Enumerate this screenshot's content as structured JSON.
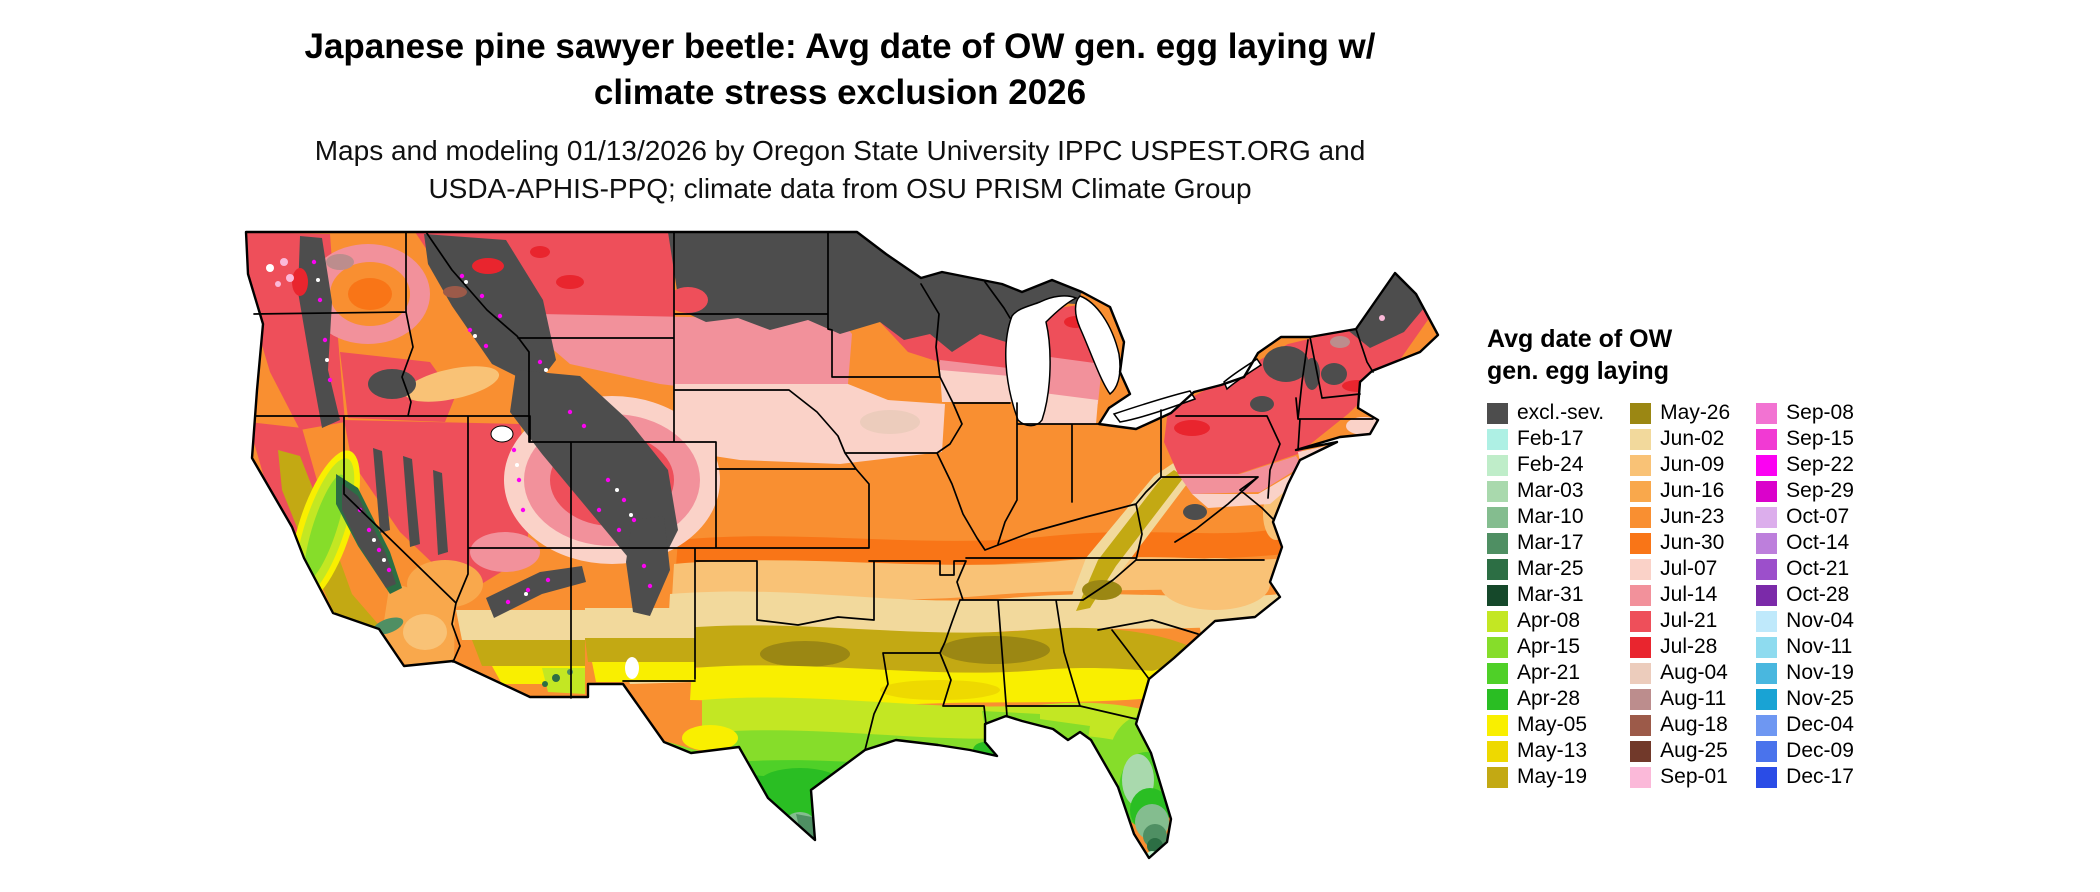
{
  "title": "Japanese pine sawyer beetle: Avg date of OW gen. egg laying w/\nclimate stress exclusion 2026",
  "subtitle": "Maps and modeling 01/13/2026 by Oregon State University IPPC USPEST.ORG and\nUSDA-APHIS-PPQ; climate data from OSU PRISM Climate Group",
  "map": {
    "region": "Continental United States",
    "kind": "choropleth raster of average egg-laying date with state boundaries"
  },
  "legend": {
    "title": "Avg date of OW\ngen. egg laying",
    "columns": [
      [
        {
          "label": "excl.-sev.",
          "color": "#4d4d4d"
        },
        {
          "label": "Feb-17",
          "color": "#aeF0e4"
        },
        {
          "label": "Feb-24",
          "color": "#bfedc9"
        },
        {
          "label": "Mar-03",
          "color": "#a9d9ad"
        },
        {
          "label": "Mar-10",
          "color": "#84bd8f"
        },
        {
          "label": "Mar-17",
          "color": "#4f8f63"
        },
        {
          "label": "Mar-25",
          "color": "#2c6e44"
        },
        {
          "label": "Mar-31",
          "color": "#15482a"
        },
        {
          "label": "Apr-08",
          "color": "#c3e723"
        },
        {
          "label": "Apr-15",
          "color": "#86dd2a"
        },
        {
          "label": "Apr-21",
          "color": "#4fd028"
        },
        {
          "label": "Apr-28",
          "color": "#2abe23"
        },
        {
          "label": "May-05",
          "color": "#f9ef00"
        },
        {
          "label": "May-13",
          "color": "#eed900"
        },
        {
          "label": "May-19",
          "color": "#c3a913"
        }
      ],
      [
        {
          "label": "May-26",
          "color": "#9b8713"
        },
        {
          "label": "Jun-02",
          "color": "#f2d99c"
        },
        {
          "label": "Jun-09",
          "color": "#f9c276"
        },
        {
          "label": "Jun-16",
          "color": "#f9a84c"
        },
        {
          "label": "Jun-23",
          "color": "#f98f31"
        },
        {
          "label": "Jun-30",
          "color": "#f97517"
        },
        {
          "label": "Jul-07",
          "color": "#fad2c8"
        },
        {
          "label": "Jul-14",
          "color": "#f2919b"
        },
        {
          "label": "Jul-21",
          "color": "#ee4f5a"
        },
        {
          "label": "Jul-28",
          "color": "#e9252e"
        },
        {
          "label": "Aug-04",
          "color": "#ecccbc"
        },
        {
          "label": "Aug-11",
          "color": "#bc8d8d"
        },
        {
          "label": "Aug-18",
          "color": "#9c5a49"
        },
        {
          "label": "Aug-25",
          "color": "#71392a"
        },
        {
          "label": "Sep-01",
          "color": "#fbb9d9"
        }
      ],
      [
        {
          "label": "Sep-08",
          "color": "#f273d2"
        },
        {
          "label": "Sep-15",
          "color": "#f13ad3"
        },
        {
          "label": "Sep-22",
          "color": "#fb02f2"
        },
        {
          "label": "Sep-29",
          "color": "#da02cb"
        },
        {
          "label": "Oct-07",
          "color": "#dcaeec"
        },
        {
          "label": "Oct-14",
          "color": "#bd7fdc"
        },
        {
          "label": "Oct-21",
          "color": "#9c4fcb"
        },
        {
          "label": "Oct-28",
          "color": "#7b2aa9"
        },
        {
          "label": "Nov-04",
          "color": "#bfe9fb"
        },
        {
          "label": "Nov-11",
          "color": "#8edbef"
        },
        {
          "label": "Nov-19",
          "color": "#49b7df"
        },
        {
          "label": "Nov-25",
          "color": "#19a3d4"
        },
        {
          "label": "Dec-04",
          "color": "#6e97f2"
        },
        {
          "label": "Dec-09",
          "color": "#4a73ec"
        },
        {
          "label": "Dec-17",
          "color": "#2a4ce6"
        }
      ]
    ]
  },
  "palette": {
    "excl": "#4d4d4d",
    "feb17": "#aef0e4",
    "feb24": "#bfedc9",
    "mar03": "#a9d9ad",
    "mar10": "#84bd8f",
    "mar17": "#4f8f63",
    "mar25": "#2c6e44",
    "mar31": "#15482a",
    "apr08": "#c3e723",
    "apr15": "#86dd2a",
    "apr21": "#4fd028",
    "apr28": "#2abe23",
    "may05": "#f9ef00",
    "may13": "#eed900",
    "may19": "#c3a913",
    "may26": "#9b8713",
    "jun02": "#f2d99c",
    "jun09": "#f9c276",
    "jun16": "#f9a84c",
    "jun23": "#f98f31",
    "jun30": "#f97517",
    "jul07": "#fad2c8",
    "jul14": "#f2919b",
    "jul21": "#ee4f5a",
    "jul28": "#e9252e",
    "aug04": "#ecccbc",
    "aug11": "#bc8d8d",
    "aug18": "#9c5a49",
    "aug25": "#71392a",
    "sep01": "#fbb9d9",
    "sep22": "#fb02f2",
    "white": "#ffffff"
  }
}
